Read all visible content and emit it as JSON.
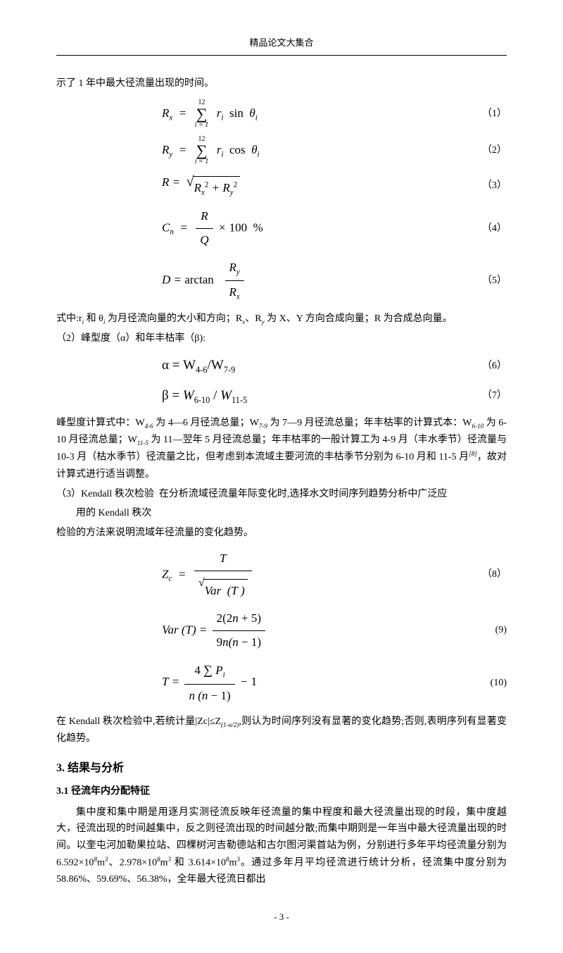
{
  "header": "精品论文大集合",
  "intro": "示了 1 年中最大径流量出现的时间。",
  "eq1": {
    "body": "R<sub>x</sub>&nbsp;&nbsp;=&nbsp;&nbsp;<span class='sum'><span class='top'>12</span><span class='sig'>∑</span><span class='bot'>i = 1</span></span>&nbsp; r<sub>i</sub>&nbsp; <span class='up'>sin</span>&nbsp;&nbsp;θ<sub>i</sub>",
    "num": "（1）"
  },
  "eq2": {
    "body": "R<sub>y</sub>&nbsp;&nbsp;=&nbsp;&nbsp;<span class='sum'><span class='top'>12</span><span class='sig'>∑</span><span class='bot'>i = 1</span></span>&nbsp; r<sub>i</sub>&nbsp; <span class='up'>cos</span>&nbsp;&nbsp;θ<sub>i</sub>",
    "num": "（2）"
  },
  "eq3": {
    "body": "R&nbsp;=&nbsp;&nbsp;<span class='sqrt'><span class='rad'>√</span><span class='arm'>R<sub>x</sub><sup style='font-style:normal'>2</sup>&nbsp;+&nbsp;R<sub>y</sub><sup style='font-style:normal'>2</sup></span></span>",
    "num": "（3）"
  },
  "eq4": {
    "body": "C<sub>n</sub>&nbsp;&nbsp;=&nbsp;&nbsp;<span class='frac'><span class='num'>R</span><span class='den'>Q</span></span>&nbsp;×&nbsp;<span class='up'>100&nbsp;&nbsp;%</span>",
    "num": "（4）"
  },
  "eq5": {
    "body": "D&nbsp;=&nbsp;<span class='up'>arctan</span>&nbsp;&nbsp;&nbsp;<span class='frac'><span class='num'>R<sub>y</sub></span><span class='den'>R<sub>x</sub></span></span>",
    "num": "（5）"
  },
  "text_after_eq5": "式中:r<sub>i</sub> 和 θ<sub>i</sub> 为月径流向量的大小和方向；R<sub>x</sub>、R<sub>y</sub> 为 X、Y 方向合成向量；R 为合成总向量。",
  "sub2_label": "（2）峰型度（α）和年丰枯率（β):",
  "eq6": {
    "body": "<span class='up' style='font-family:serif'>α</span> = W<sub><span class='up'>4-6</span></sub>/W<sub><span class='up'>7-9</span></sub>",
    "num": "（6）"
  },
  "eq7": {
    "body": "<span class='up' style='font-family:serif'>β</span> = <i>W</i><sub><span class='up'>6-10</span></sub> / <i>W</i><sub><span class='up'>11-5</span></sub>",
    "num": "（7）"
  },
  "text_after_eq7": "峰型度计算式中：W<sub>4-6</sub> 为 4—6 月径流总量；W<sub>7-9</sub> 为 7—9 月径流总量；年丰枯率的计算式本：W<sub>6-10</sub> 为 6-10 月径流总量；W<sub>11-5</sub> 为 11—翌年 5 月径流总量；年丰枯率的一般计算工为 4-9 月（丰水季节）径流量与 10-3 月（枯水季节）径流量之比，但考虑到本流域主要河流的丰枯季节分别为 6-10 月和 11-5 月<sup>[8]</sup>，故对计算式进行适当调整。",
  "sub3_text1": "（3）Kendall 秩次检验 &nbsp;在分析流域径流量年际变化时,选择水文时间序列趋势分析中广泛应",
  "sub3_text2": "用的 Kendall  秩次",
  "sub3_text3": "检验的方法来说明流域年径流量的变化趋势。",
  "eq8": {
    "body": "Z<sub>c</sub>&nbsp;&nbsp;=&nbsp;&nbsp;<span class='frac'><span class='num'>T</span><span class='den'><span class='sqrt'><span class='rad' style='font-size:16px'>√</span><span class='arm'>Var&nbsp;&nbsp;(T&nbsp;)</span></span></span></span>",
    "num": "（8）"
  },
  "eq9": {
    "body": "Var&nbsp;(T) =&nbsp;<span class='frac'><span class='num'><span class='up'>2(2</span>n <span class='up'>+ 5)</span></span><span class='den'><span class='up'>9</span>n(n <span class='up'>− 1)</span></span></span>",
    "num": "(9)"
  },
  "eq10": {
    "body": "T&nbsp;=&nbsp;<span class='frac'><span class='num'><span class='up'>4</span> <span class='up' style='font-size:18px'>∑</span>&nbsp;P<sub>i</sub></span><span class='den'>n (n <span class='up'>− 1)</span></span></span>&nbsp;−&nbsp;<span class='up'>1</span>",
    "num": "(10)"
  },
  "text_after_eq10": "在 Kendall 秩次检验中,若统计量|Zc|≤Z<sub>(1-α/2)</sub>,则认为时间序列没有显著的变化趋势;否则,表明序列有显著变化趋势。",
  "section3_title": "3. 结果与分析",
  "section31_title": "3.1 径流年内分配特征",
  "section31_text": "集中度和集中期是用逐月实测径流反映年径流量的集中程度和最大径流量出现的时段，集中度越大，径流出现的时间越集中，反之则径流出现的时间越分散;而集中期则是一年当中最大径流量出现的时间。以奎屯河加勒果拉站、四棵树河吉勒德站和古尔图河渠首站为例，分别进行多年平均径流量分别为 6.592×10<sup>8</sup>m<sup>3</sup>、2.978×10<sup>8</sup>m<sup>3</sup> 和 3.614×10<sup>8</sup>m<sup>3</sup>。通过多年月平均径流进行统计分析，径流集中度分别为 58.86%、59.69%、56.38%，全年最大径流日都出",
  "footer": "- 3 -"
}
